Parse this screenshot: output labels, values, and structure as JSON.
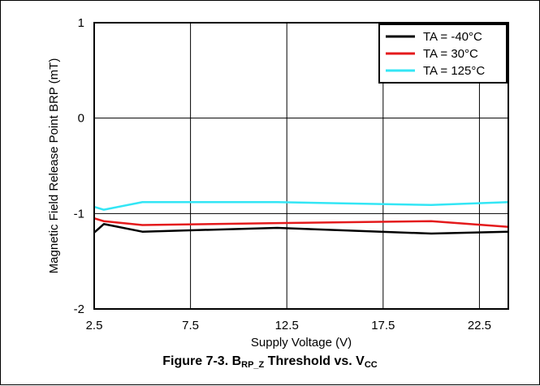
{
  "chart_data": {
    "type": "line",
    "xlabel": "Supply Voltage (V)",
    "ylabel": "Magnetic Field Release Point BRP (mT)",
    "xlim": [
      2.5,
      24
    ],
    "ylim": [
      -2,
      1
    ],
    "xticks": [
      "2.5",
      "7.5",
      "12.5",
      "17.5",
      "22.5"
    ],
    "yticks": [
      "1",
      "0",
      "-1",
      "-2"
    ],
    "grid": true,
    "legend_position": "top-right",
    "series": [
      {
        "name": "TA = -40°C",
        "color": "#000000",
        "x": [
          2.5,
          3,
          5,
          12,
          20,
          24
        ],
        "y": [
          -1.2,
          -1.11,
          -1.19,
          -1.15,
          -1.21,
          -1.19
        ]
      },
      {
        "name": "TA = 30°C",
        "color": "#e41a1c",
        "x": [
          2.5,
          3,
          5,
          12,
          20,
          24
        ],
        "y": [
          -1.05,
          -1.08,
          -1.12,
          -1.1,
          -1.08,
          -1.14
        ]
      },
      {
        "name": "TA = 125°C",
        "color": "#33e6f5",
        "x": [
          2.5,
          3,
          5,
          12,
          20,
          24
        ],
        "y": [
          -0.93,
          -0.96,
          -0.88,
          -0.88,
          -0.91,
          -0.88
        ]
      }
    ]
  },
  "caption": {
    "prefix": "Figure 7-3. B",
    "sub1": "RP_Z",
    "middle": " Threshold vs. V",
    "sub2": "CC"
  }
}
